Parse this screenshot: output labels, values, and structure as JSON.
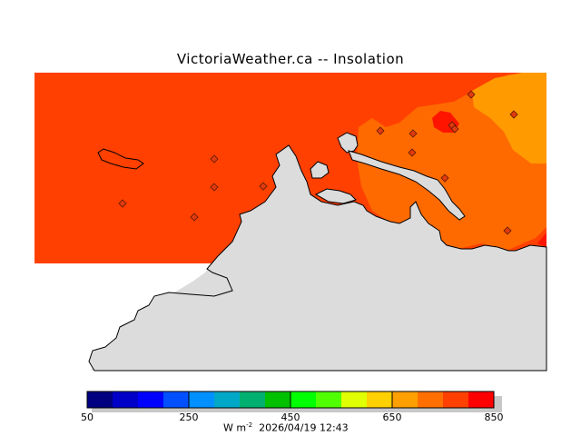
{
  "title": "VictoriaWeather.ca  --  Insolation",
  "colors": {
    "field_base": "#ff4000",
    "field_mid": "#ff6a00",
    "field_high": "#ff9a00",
    "field_peak": "#ff1400",
    "land": "#dcdcdc",
    "coast": "#000000",
    "station_fill": "#e03a10"
  },
  "legend": {
    "min_label": "50",
    "labels": [
      "50",
      "250",
      "450",
      "650",
      "850"
    ],
    "unit_prefix": "W m",
    "unit_exponent": "-2",
    "timestamp": "2026/04/19 12:43",
    "bins": [
      "#000080",
      "#0000c8",
      "#0000ff",
      "#0050ff",
      "#0090ff",
      "#00a8c8",
      "#00b070",
      "#00c000",
      "#00ff00",
      "#50ff00",
      "#e0ff00",
      "#ffd000",
      "#ffa000",
      "#ff7000",
      "#ff4000",
      "#ff0000"
    ]
  },
  "stations": {
    "count": 14,
    "icon": "diamond-station-icon"
  }
}
